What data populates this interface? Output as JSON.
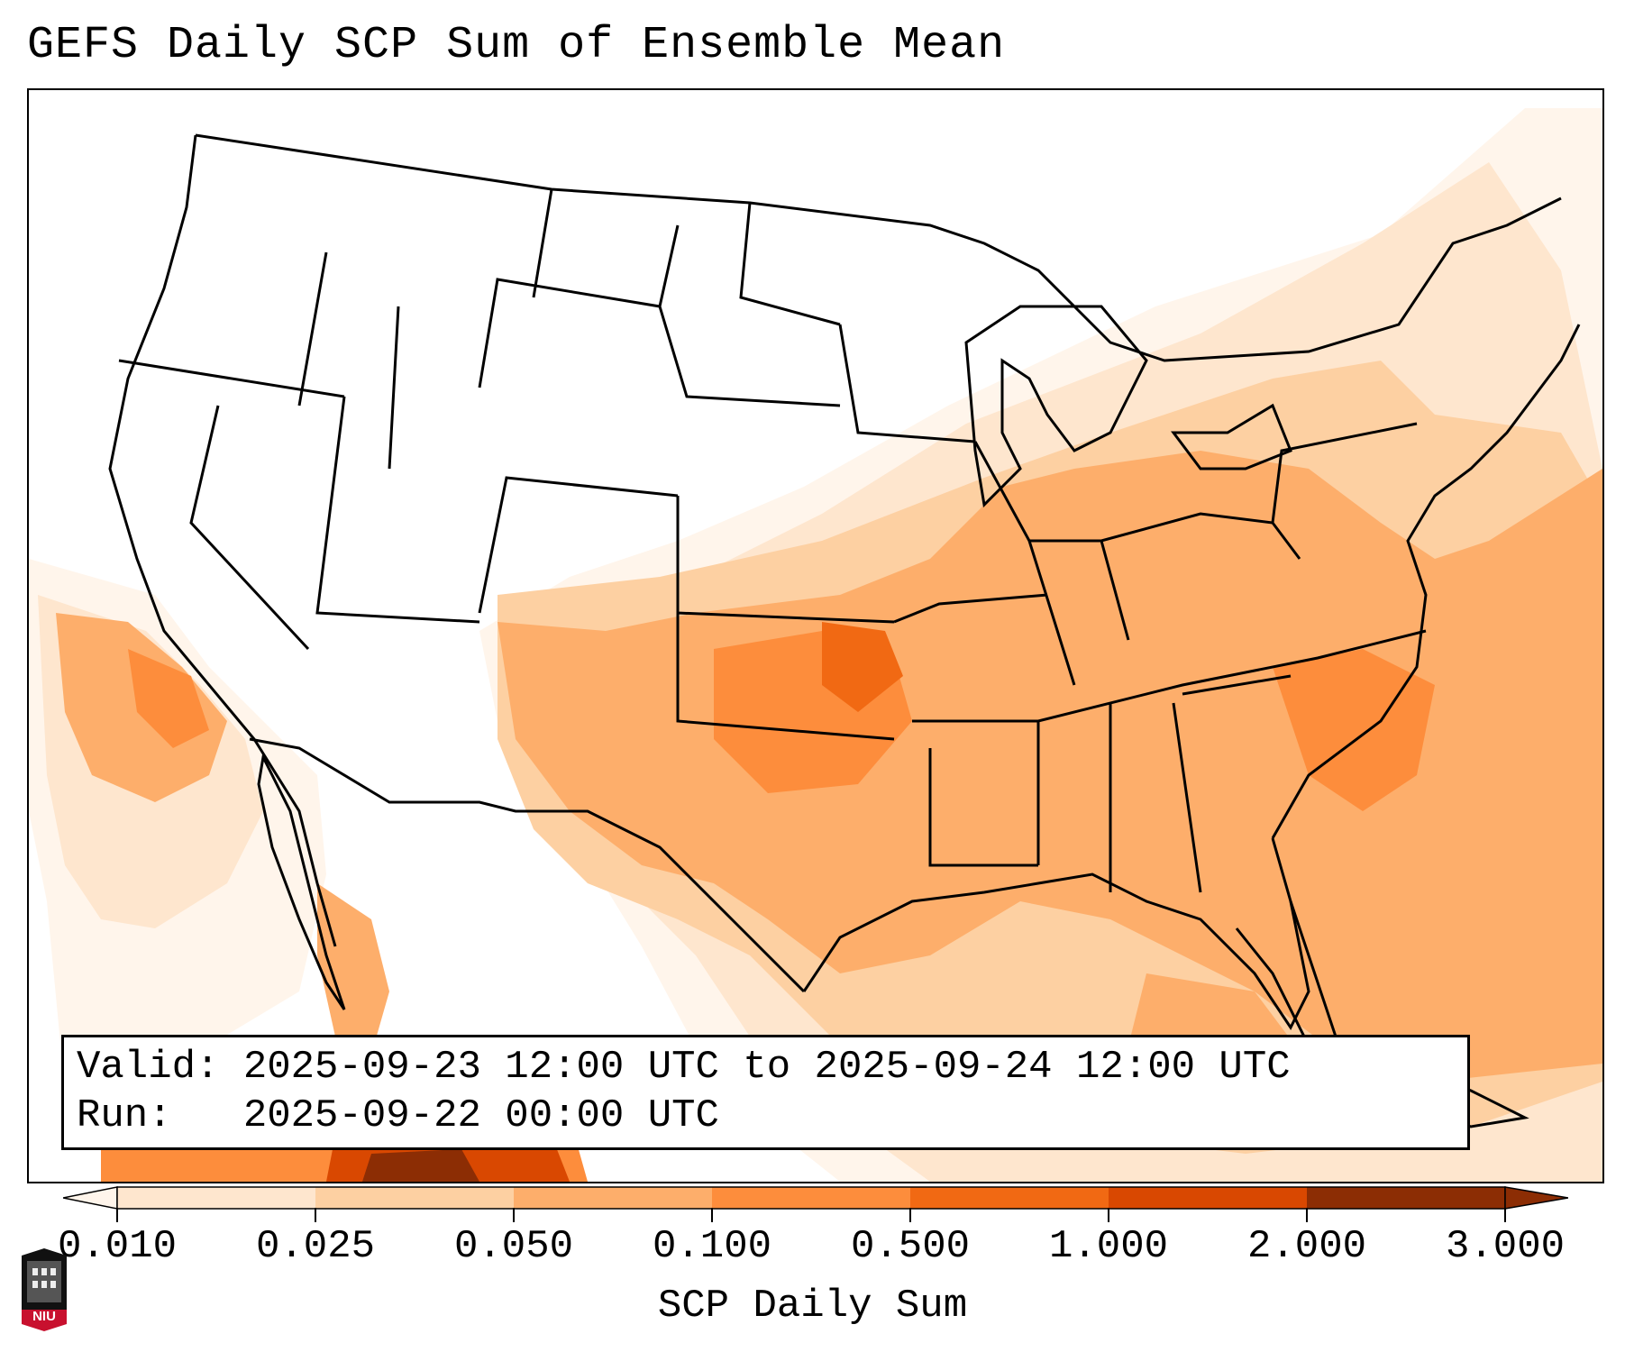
{
  "title": "GEFS Daily SCP Sum of Ensemble Mean",
  "info": {
    "valid_label": "Valid:",
    "valid_value": "2025-09-23 12:00 UTC to 2025-09-24 12:00 UTC",
    "run_label": "Run:",
    "run_value": "2025-09-22 00:00 UTC"
  },
  "colorbar": {
    "label": "SCP Daily Sum",
    "ticks": [
      "0.010",
      "0.025",
      "0.050",
      "0.100",
      "0.500",
      "1.000",
      "2.000",
      "3.000"
    ],
    "colors": [
      "#fff5eb",
      "#fee6ce",
      "#fdd0a2",
      "#fdae6b",
      "#fd8d3c",
      "#f16913",
      "#d94801",
      "#8c2d04"
    ],
    "extend": "both"
  },
  "logo": {
    "text": "NIU"
  }
}
